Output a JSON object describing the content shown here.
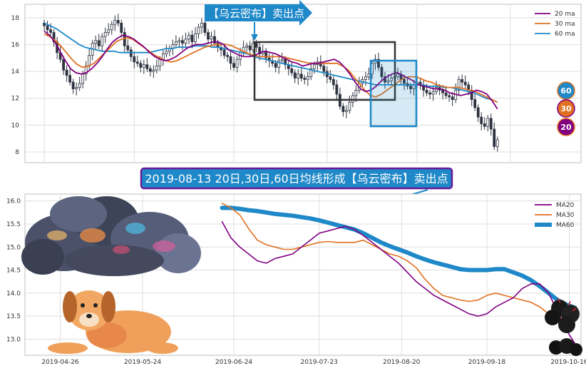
{
  "colors": {
    "ma20": "#800080",
    "ma30": "#e07020",
    "ma60": "#1e88c8",
    "candle": "#2f3340",
    "grid": "#dedede",
    "frame": "#bfbfbf",
    "box_dark": "#333333",
    "box_blue": "#1e88c8",
    "banner_bg": "#1e88c8",
    "banner_border": "#6a1b9a"
  },
  "top_chart": {
    "callout": "【乌云密布】卖出点",
    "badges": [
      "60",
      "30",
      "20"
    ],
    "legend": [
      "20 ma",
      "30 ma",
      "60 ma"
    ]
  },
  "banner": {
    "text": "2019-08-13 20日,30日,60日均线形成【乌云密布】卖出点"
  },
  "illustrations": [
    "storm-cloud",
    "sleeping-dog",
    "small-dark-clouds"
  ],
  "chart_data": [
    {
      "type": "candlestick",
      "legend_placement": "top-right",
      "grid": true,
      "ylim": [
        7.2,
        19
      ],
      "yticks": [
        8,
        10,
        12,
        14,
        16,
        18
      ],
      "x_range": [
        -6,
        167
      ],
      "close": [
        17.4,
        17.1,
        16.9,
        16.2,
        15.4,
        14.9,
        14.1,
        13.7,
        13.2,
        12.7,
        12.8,
        13.1,
        13.8,
        14.4,
        15.2,
        16.1,
        16.3,
        15.9,
        16.6,
        16.9,
        17.1,
        17.5,
        17.8,
        17.6,
        16.9,
        15.9,
        15.6,
        15.1,
        14.7,
        14.6,
        14.3,
        14.5,
        14.2,
        14.0,
        14.1,
        14.4,
        14.9,
        15.3,
        15.5,
        15.7,
        16.0,
        16.2,
        16.3,
        16.1,
        16.4,
        16.7,
        16.2,
        16.8,
        17.3,
        17.6,
        16.9,
        16.4,
        16.6,
        16.1,
        15.8,
        15.6,
        15.2,
        15.1,
        14.6,
        14.3,
        14.9,
        15.4,
        15.8,
        15.9,
        15.6,
        16.1,
        15.8,
        15.3,
        15.5,
        15.0,
        14.8,
        14.6,
        14.3,
        14.8,
        14.9,
        14.5,
        14.2,
        13.9,
        13.5,
        13.8,
        13.5,
        13.4,
        13.6,
        14.2,
        14.5,
        14.7,
        14.4,
        14.0,
        13.6,
        13.4,
        13.0,
        12.3,
        11.4,
        11.0,
        11.1,
        11.7,
        12.2,
        12.6,
        13.1,
        13.4,
        13.6,
        13.8,
        14.6,
        14.9,
        14.3,
        13.6,
        13.2,
        13.3,
        13.5,
        13.6,
        13.8,
        13.4,
        13.1,
        12.9,
        12.7,
        13.0,
        13.2,
        13.0,
        12.6,
        12.4,
        12.3,
        12.5,
        12.8,
        12.6,
        12.4,
        12.2,
        12.1,
        11.9,
        12.6,
        13.4,
        13.2,
        13.0,
        12.6,
        11.9,
        11.3,
        10.6,
        10.1,
        9.9,
        10.5,
        9.7,
        8.4,
        8.9
      ],
      "ma20": [
        17.0,
        16.7,
        16.2,
        15.5,
        14.8,
        14.2,
        13.9,
        13.8,
        13.9,
        14.2,
        14.6,
        15.1,
        15.7,
        16.2,
        16.5,
        16.7,
        16.6,
        16.4,
        16.1,
        15.8,
        15.4,
        15.1,
        14.9,
        14.8,
        14.9,
        15.1,
        15.4,
        15.7,
        15.9,
        16.0,
        16.0,
        16.1,
        16.2,
        16.2,
        16.0,
        15.6,
        15.4,
        15.2,
        15.1,
        15.1,
        15.2,
        15.4,
        15.5,
        15.4,
        15.3,
        15.1,
        14.9,
        14.7,
        14.6,
        14.4,
        14.5,
        14.6,
        14.6,
        14.7,
        14.8,
        14.9,
        14.7,
        14.3,
        13.8,
        13.2,
        12.7,
        12.5,
        12.6,
        12.9,
        13.3,
        13.6,
        13.8,
        13.9,
        13.7,
        13.5,
        13.3,
        13.0,
        12.9,
        12.8,
        12.7,
        12.7,
        12.6,
        12.4,
        12.3,
        12.2,
        12.3,
        12.4,
        12.6,
        12.5,
        12.3,
        11.8,
        11.2
      ],
      "ma30": [
        16.8,
        16.6,
        16.3,
        15.9,
        15.4,
        14.9,
        14.5,
        14.3,
        14.4,
        14.6,
        15.0,
        15.4,
        15.8,
        16.2,
        16.4,
        16.5,
        16.4,
        16.1,
        15.8,
        15.5,
        15.2,
        15.0,
        14.8,
        14.7,
        14.8,
        15.0,
        15.2,
        15.4,
        15.6,
        15.8,
        15.9,
        16.0,
        16.0,
        16.0,
        15.9,
        15.7,
        15.5,
        15.3,
        15.2,
        15.1,
        15.1,
        15.1,
        15.1,
        15.1,
        15.0,
        14.9,
        14.8,
        14.7,
        14.6,
        14.6,
        14.6,
        14.6,
        14.6,
        14.6,
        14.4,
        14.1,
        13.6,
        13.1,
        12.6,
        12.2,
        12.1,
        12.3,
        12.6,
        12.9,
        13.2,
        13.5,
        13.6,
        13.6,
        13.5,
        13.3,
        13.2,
        13.0,
        12.9,
        12.8,
        12.8,
        12.8,
        12.7,
        12.6,
        12.5,
        12.3,
        12.1,
        11.9,
        11.7
      ],
      "ma60": [
        17.6,
        17.4,
        17.2,
        16.9,
        16.6,
        16.3,
        16.0,
        15.8,
        15.7,
        15.6,
        15.5,
        15.5,
        15.5,
        15.4,
        15.4,
        15.4,
        15.4,
        15.4,
        15.4,
        15.5,
        15.6,
        15.7,
        15.7,
        15.8,
        15.8,
        15.8,
        15.9,
        15.9,
        15.9,
        15.8,
        15.8,
        15.7,
        15.6,
        15.5,
        15.4,
        15.3,
        15.1,
        15.0,
        14.9,
        14.8,
        14.7,
        14.6,
        14.5,
        14.4,
        14.3,
        14.2,
        14.1,
        14.0,
        13.9,
        13.8,
        13.7,
        13.6,
        13.5,
        13.4,
        13.3,
        13.2,
        13.1,
        13.0,
        13.0,
        13.0,
        13.0,
        13.0,
        13.0,
        13.0,
        13.0,
        13.0,
        12.9,
        12.9,
        12.9,
        12.8,
        12.8,
        12.7,
        12.6,
        12.5,
        12.4,
        12.2,
        12.0,
        11.9,
        11.7
      ]
    },
    {
      "type": "line",
      "legend_placement": "top-right",
      "grid": true,
      "ylim": [
        12.65,
        16.15
      ],
      "yticks": [
        13.0,
        13.5,
        14.0,
        14.5,
        15.0,
        15.5,
        16.0
      ],
      "x_range": [
        -12,
        177
      ],
      "xticks": [
        {
          "x": 0,
          "label": "2019-04-26"
        },
        {
          "x": 28,
          "label": "2019-05-24"
        },
        {
          "x": 59,
          "label": "2019-06-24"
        },
        {
          "x": 88,
          "label": "2019-07-23"
        },
        {
          "x": 116,
          "label": "2019-08-20"
        },
        {
          "x": 145,
          "label": "2019-09-18"
        },
        {
          "x": 173,
          "label": "2019-10-16"
        }
      ],
      "series": [
        {
          "name": "MA20",
          "x": [
            55,
            58,
            61,
            64,
            67,
            70,
            73,
            76,
            79,
            82,
            85,
            88,
            91,
            94,
            97,
            100,
            103,
            106,
            109,
            112,
            115,
            118,
            121,
            124,
            127,
            130,
            133,
            136,
            139,
            142,
            145,
            148,
            151,
            154,
            157,
            160,
            163,
            166,
            169,
            172,
            175
          ],
          "values": [
            15.55,
            15.2,
            15.0,
            14.85,
            14.7,
            14.65,
            14.75,
            14.8,
            14.85,
            15.0,
            15.15,
            15.3,
            15.35,
            15.4,
            15.45,
            15.38,
            15.25,
            15.1,
            14.95,
            14.8,
            14.65,
            14.45,
            14.25,
            14.1,
            13.95,
            13.85,
            13.75,
            13.65,
            13.55,
            13.5,
            13.55,
            13.7,
            13.8,
            13.9,
            14.1,
            14.2,
            14.2,
            14.0,
            13.6,
            13.2,
            12.9
          ]
        },
        {
          "name": "MA30",
          "x": [
            55,
            58,
            61,
            64,
            67,
            70,
            73,
            76,
            79,
            82,
            85,
            88,
            91,
            94,
            97,
            100,
            103,
            106,
            109,
            112,
            115,
            118,
            121,
            124,
            127,
            130,
            133,
            136,
            139,
            142,
            145,
            148,
            151,
            154,
            157,
            160,
            163,
            166,
            169,
            172,
            175
          ],
          "values": [
            15.95,
            15.85,
            15.7,
            15.4,
            15.15,
            15.05,
            15.0,
            14.95,
            14.95,
            15.0,
            15.05,
            15.1,
            15.12,
            15.1,
            15.1,
            15.1,
            15.15,
            15.05,
            14.95,
            14.85,
            14.8,
            14.7,
            14.55,
            14.3,
            14.1,
            13.95,
            13.9,
            13.85,
            13.82,
            13.85,
            13.95,
            14.0,
            13.95,
            13.9,
            13.85,
            13.8,
            13.7,
            13.55,
            13.45,
            13.55,
            13.65
          ]
        },
        {
          "name": "MA60",
          "x": [
            55,
            58,
            61,
            64,
            67,
            70,
            73,
            76,
            79,
            82,
            85,
            88,
            91,
            94,
            97,
            100,
            103,
            106,
            109,
            112,
            115,
            118,
            121,
            124,
            127,
            130,
            133,
            136,
            139,
            142,
            145,
            148,
            151,
            154,
            157,
            160,
            163,
            166,
            169,
            172,
            175
          ],
          "values": [
            15.85,
            15.85,
            15.83,
            15.8,
            15.78,
            15.75,
            15.72,
            15.7,
            15.68,
            15.65,
            15.62,
            15.58,
            15.53,
            15.48,
            15.43,
            15.38,
            15.3,
            15.2,
            15.1,
            15.02,
            14.95,
            14.88,
            14.8,
            14.73,
            14.67,
            14.62,
            14.57,
            14.52,
            14.5,
            14.5,
            14.5,
            14.52,
            14.52,
            14.45,
            14.38,
            14.28,
            14.15,
            14.0,
            13.85,
            13.75,
            13.68
          ]
        }
      ]
    }
  ]
}
